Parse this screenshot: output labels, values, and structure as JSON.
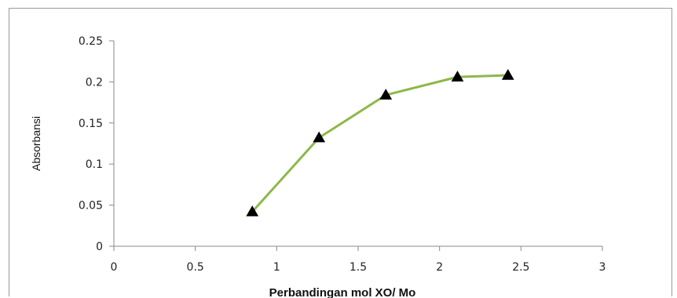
{
  "chart_data": {
    "type": "line",
    "title": "",
    "xlabel": "Perbandingan mol XO/ Mo",
    "ylabel": "Absorbansi",
    "xlim": [
      0,
      3
    ],
    "ylim": [
      0,
      0.25
    ],
    "x_ticks": [
      "0",
      "0.5",
      "1",
      "1.5",
      "2",
      "2.5",
      "3"
    ],
    "y_ticks": [
      "0",
      "0.05",
      "0.1",
      "0.15",
      "0.2",
      "0.25"
    ],
    "grid": false,
    "series": [
      {
        "color": "#8db84a",
        "marker": "triangle",
        "marker_color": "#000000",
        "x": [
          0.85,
          1.26,
          1.67,
          2.11,
          2.42
        ],
        "y": [
          0.042,
          0.132,
          0.184,
          0.206,
          0.208
        ]
      }
    ]
  }
}
